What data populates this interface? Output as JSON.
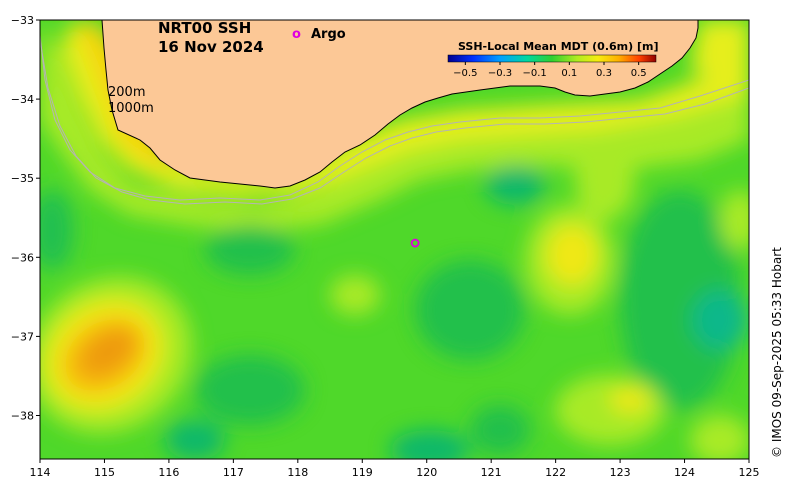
{
  "title": {
    "line1": "NRT00 SSH",
    "line2": "16 Nov 2024"
  },
  "isobaths": {
    "label_200": "200m",
    "label_1000": "1000m"
  },
  "legend": {
    "argo_symbol": "o",
    "argo_label": "Argo",
    "argo_color": "#e000e0"
  },
  "colorbar": {
    "title": "SSH-Local Mean MDT (0.6m) [m]",
    "ticks": [
      "−0.5",
      "−0.3",
      "−0.1",
      "0.1",
      "0.3",
      "0.5"
    ],
    "range": [
      -0.6,
      0.6
    ]
  },
  "credit": "© IMOS 09-Sep-2025 05:33 Hobart",
  "axes": {
    "x_ticks": [
      "114",
      "115",
      "116",
      "117",
      "118",
      "119",
      "120",
      "121",
      "122",
      "123",
      "124",
      "125"
    ],
    "y_ticks": [
      "−33",
      "−34",
      "−35",
      "−36",
      "−37",
      "−38"
    ],
    "lon_range": [
      114,
      125
    ],
    "lat_range": [
      -38.55,
      -33
    ]
  },
  "colors": {
    "land": "#fcc896",
    "coast": "#000000",
    "isobath": "#b4b4b4",
    "field_base": "#4fd82a"
  },
  "argo_floats": [
    {
      "lon": 119.82,
      "lat": -35.82
    }
  ]
}
